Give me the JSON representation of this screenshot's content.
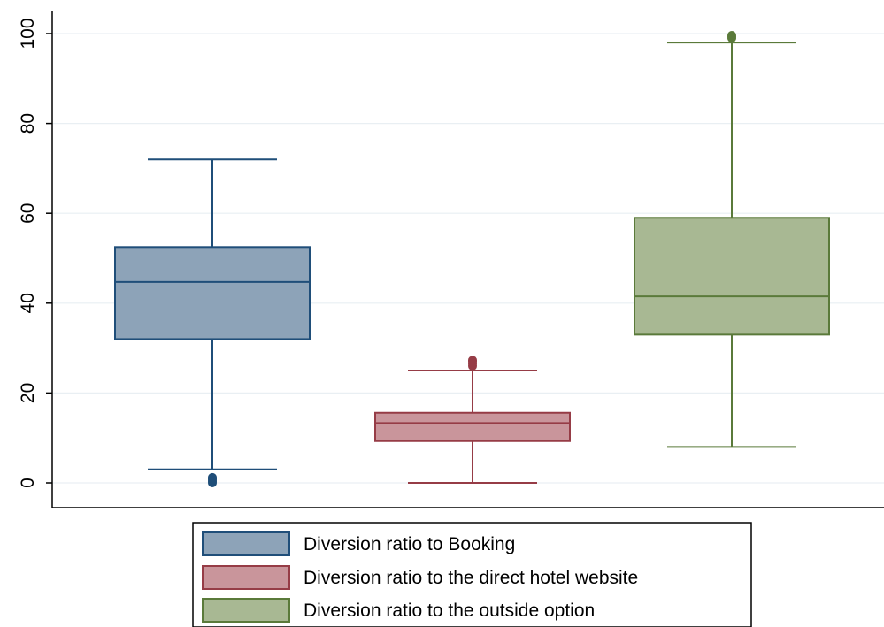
{
  "chart_data": {
    "type": "box",
    "title": "",
    "xlabel": "",
    "ylabel": "",
    "ylim": [
      -5,
      105
    ],
    "y_ticks": [
      "0",
      "20",
      "40",
      "60",
      "80",
      "100"
    ],
    "grid": "horizontal",
    "legend_position": "bottom",
    "series": [
      {
        "name": "Diversion ratio to Booking",
        "color_fill": "#8da3b8",
        "color_line": "#1f4e79",
        "whisker_low": 3,
        "q1": 32,
        "median": 44.7,
        "q3": 52.5,
        "whisker_high": 72,
        "outliers": [
          0,
          0.3,
          0.6,
          0.9,
          1.2
        ]
      },
      {
        "name": "Diversion ratio to the direct hotel website",
        "color_fill": "#c9959b",
        "color_line": "#963c46",
        "whisker_low": 0,
        "q1": 9.3,
        "median": 13.3,
        "q3": 15.6,
        "whisker_high": 25,
        "outliers": [
          26,
          26.5,
          27,
          27.3
        ]
      },
      {
        "name": "Diversion ratio to the outside option",
        "color_fill": "#a8b893",
        "color_line": "#5a7a3a",
        "whisker_low": 8,
        "q1": 33,
        "median": 41.5,
        "q3": 59,
        "whisker_high": 98,
        "outliers": [
          99,
          99.3,
          99.6
        ]
      }
    ]
  }
}
